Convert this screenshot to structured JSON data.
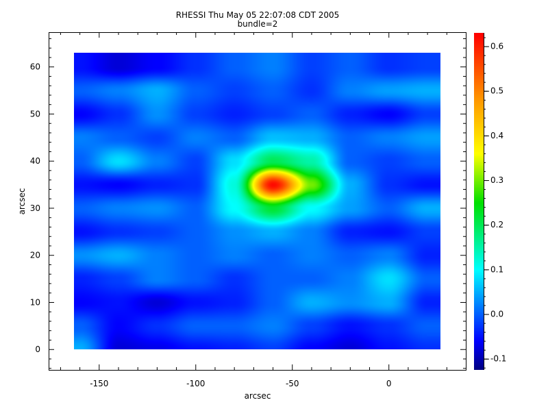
{
  "chart_data": {
    "type": "heatmap",
    "title": "RHESSI Thu May 05 22:07:08 CDT 2005",
    "subtitle": "bundle=2",
    "xlabel": "arcsec",
    "ylabel": "arcsec",
    "xlim": [
      -176,
      40
    ],
    "ylim": [
      -4.4,
      67.3
    ],
    "image_extent": {
      "x": [
        -163,
        27
      ],
      "y": [
        0,
        63
      ]
    },
    "x_ticks": [
      -150,
      -100,
      -50,
      0
    ],
    "y_ticks": [
      0,
      10,
      20,
      30,
      40,
      50,
      60
    ],
    "colorbar": {
      "range": [
        -0.125,
        0.63
      ],
      "ticks": [
        "-0.1",
        "0.0",
        "0.1",
        "0.2",
        "0.3",
        "0.4",
        "0.5",
        "0.6"
      ],
      "colormap": [
        {
          "v": -0.125,
          "color": "#00007f"
        },
        {
          "v": -0.06,
          "color": "#0000ff"
        },
        {
          "v": 0.1,
          "color": "#00ffff"
        },
        {
          "v": 0.25,
          "color": "#00e000"
        },
        {
          "v": 0.36,
          "color": "#ffff00"
        },
        {
          "v": 0.48,
          "color": "#ff9900"
        },
        {
          "v": 0.63,
          "color": "#ff0000"
        }
      ]
    },
    "grid_x": [
      -160,
      -140,
      -120,
      -100,
      -80,
      -60,
      -40,
      -20,
      0,
      20
    ],
    "grid_y": [
      60,
      55,
      50,
      45,
      40,
      35,
      30,
      25,
      20,
      15,
      10,
      5,
      0
    ],
    "values": [
      [
        -0.05,
        -0.08,
        -0.06,
        -0.03,
        0.0,
        0.02,
        -0.02,
        0.0,
        -0.03,
        -0.02
      ],
      [
        0.0,
        0.02,
        0.05,
        0.0,
        -0.02,
        0.0,
        -0.03,
        0.02,
        0.04,
        0.05
      ],
      [
        -0.06,
        -0.03,
        0.03,
        -0.02,
        -0.04,
        -0.02,
        0.0,
        -0.04,
        -0.06,
        -0.02
      ],
      [
        0.02,
        0.0,
        -0.02,
        0.02,
        0.0,
        0.06,
        0.05,
        0.0,
        0.02,
        0.04
      ],
      [
        0.0,
        0.08,
        0.02,
        -0.02,
        0.08,
        0.2,
        0.15,
        0.0,
        -0.02,
        0.0
      ],
      [
        -0.05,
        -0.06,
        -0.04,
        -0.03,
        0.12,
        0.62,
        0.3,
        0.05,
        -0.03,
        -0.05
      ],
      [
        0.0,
        0.02,
        0.03,
        0.0,
        0.1,
        0.22,
        0.1,
        0.04,
        0.0,
        0.05
      ],
      [
        -0.05,
        -0.03,
        -0.02,
        0.0,
        0.03,
        0.05,
        0.02,
        -0.04,
        -0.05,
        -0.02
      ],
      [
        0.03,
        0.05,
        0.02,
        0.0,
        0.02,
        0.0,
        0.02,
        0.0,
        0.02,
        -0.04
      ],
      [
        -0.04,
        -0.02,
        0.02,
        0.0,
        -0.03,
        0.0,
        0.0,
        0.02,
        0.08,
        0.0
      ],
      [
        -0.06,
        -0.05,
        -0.08,
        -0.05,
        -0.04,
        0.0,
        0.05,
        0.03,
        0.05,
        -0.04
      ],
      [
        0.0,
        -0.06,
        -0.03,
        0.0,
        0.0,
        0.02,
        -0.02,
        -0.05,
        -0.03,
        0.0
      ],
      [
        0.05,
        -0.08,
        -0.07,
        -0.05,
        -0.04,
        -0.02,
        -0.06,
        -0.08,
        -0.05,
        -0.03
      ]
    ]
  }
}
